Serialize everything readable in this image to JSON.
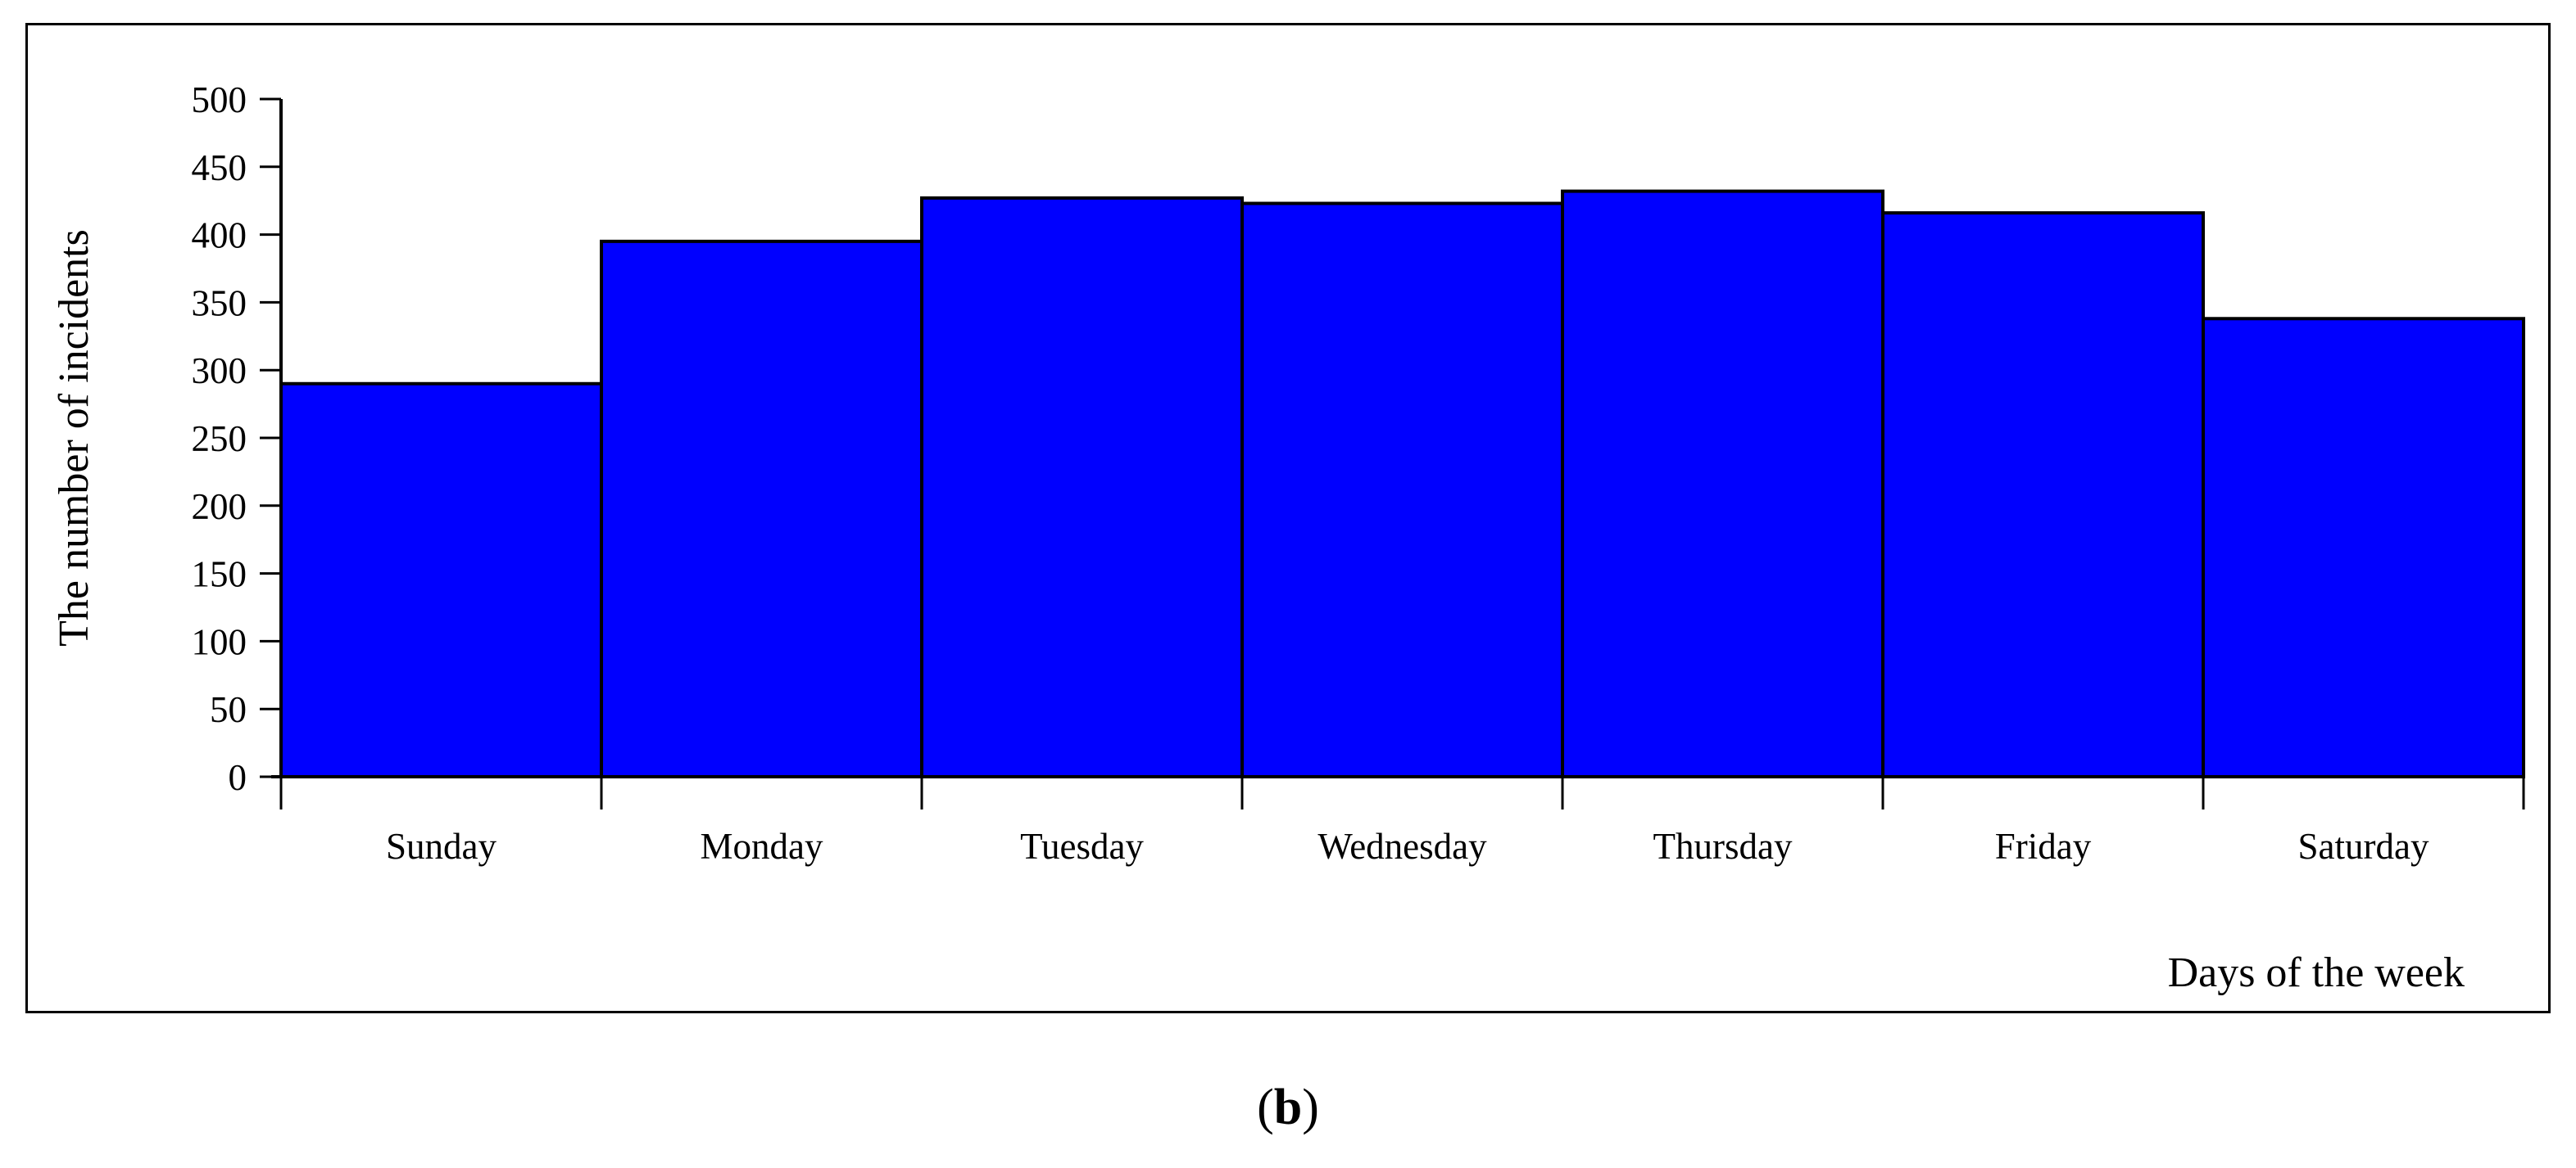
{
  "figure": {
    "caption": {
      "open": "(",
      "label": "b",
      "close": ")"
    }
  },
  "chart_data": {
    "type": "bar",
    "title": "",
    "categories": [
      "Sunday",
      "Monday",
      "Tuesday",
      "Wednesday",
      "Thursday",
      "Friday",
      "Saturday"
    ],
    "values": [
      290,
      395,
      427,
      423,
      432,
      416,
      338
    ],
    "xlabel": "Days of the week",
    "ylabel": "The number of incidents",
    "ylim": [
      0,
      500
    ],
    "yticks": [
      0,
      50,
      100,
      150,
      200,
      250,
      300,
      350,
      400,
      450,
      500
    ],
    "grid": false,
    "legend": "none",
    "bar_fill": "#0000FF",
    "bar_stroke": "#000000",
    "axis_color": "#000000",
    "border_color": "#000000"
  }
}
